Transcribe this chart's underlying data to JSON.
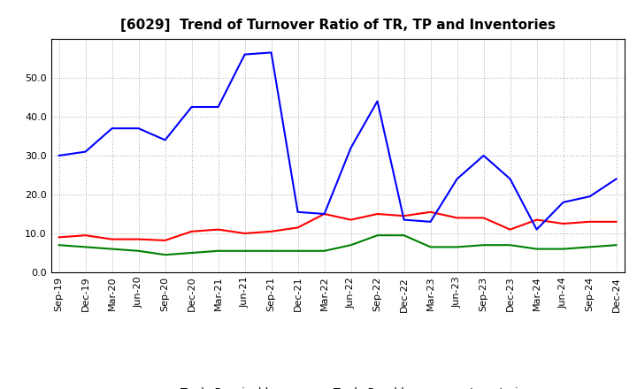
{
  "title": "[6029]  Trend of Turnover Ratio of TR, TP and Inventories",
  "x_labels": [
    "Sep-19",
    "Dec-19",
    "Mar-20",
    "Jun-20",
    "Sep-20",
    "Dec-20",
    "Mar-21",
    "Jun-21",
    "Sep-21",
    "Dec-21",
    "Mar-22",
    "Jun-22",
    "Sep-22",
    "Dec-22",
    "Mar-23",
    "Jun-23",
    "Sep-23",
    "Dec-23",
    "Mar-24",
    "Jun-24",
    "Sep-24",
    "Dec-24"
  ],
  "trade_receivables": [
    9.0,
    9.5,
    8.5,
    8.5,
    8.2,
    10.5,
    11.0,
    10.0,
    10.5,
    11.5,
    15.0,
    13.5,
    15.0,
    14.5,
    15.5,
    14.0,
    14.0,
    11.0,
    13.5,
    12.5,
    13.0,
    13.0
  ],
  "trade_payables": [
    30.0,
    31.0,
    37.0,
    37.0,
    34.0,
    42.5,
    42.5,
    56.0,
    56.5,
    15.5,
    15.0,
    32.0,
    44.0,
    13.5,
    13.0,
    24.0,
    30.0,
    24.0,
    11.0,
    18.0,
    19.5,
    24.0
  ],
  "inventories": [
    7.0,
    6.5,
    6.0,
    5.5,
    4.5,
    5.0,
    5.5,
    5.5,
    5.5,
    5.5,
    5.5,
    7.0,
    9.5,
    9.5,
    6.5,
    6.5,
    7.0,
    7.0,
    6.0,
    6.0,
    6.5,
    7.0
  ],
  "ylim": [
    0,
    60
  ],
  "yticks": [
    0.0,
    10.0,
    20.0,
    30.0,
    40.0,
    50.0
  ],
  "color_tr": "#ff0000",
  "color_tp": "#0000ff",
  "color_inv": "#008000",
  "background_color": "#ffffff",
  "grid_color": "#aaaaaa",
  "title_fontsize": 11,
  "tick_fontsize": 8,
  "legend_fontsize": 9
}
